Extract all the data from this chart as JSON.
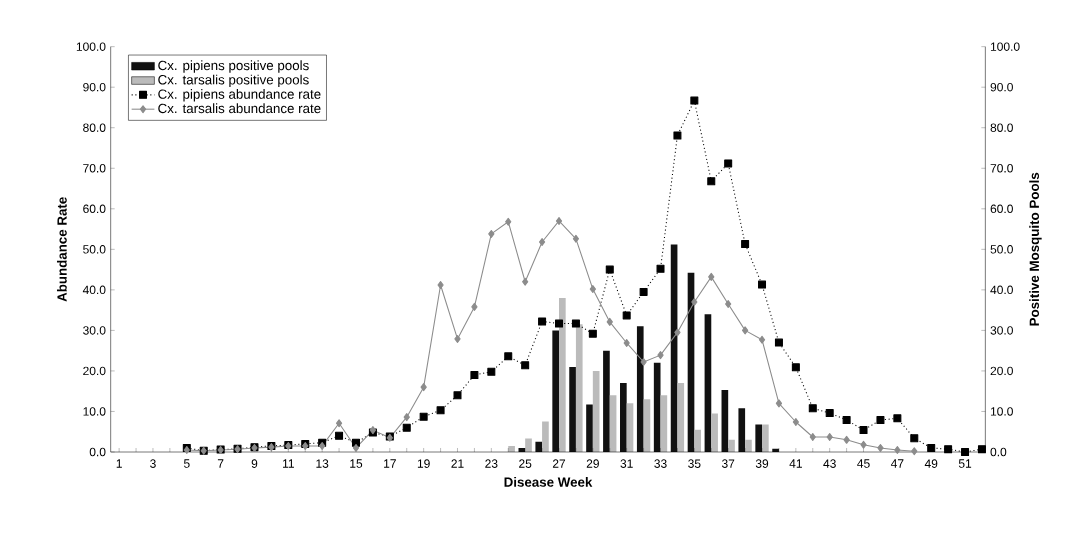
{
  "chart_data": {
    "type": "bar",
    "xlabel": "Disease Week",
    "ylabel": "Abundance Rate",
    "y2label": "Positive Mosquito Pools",
    "categories": [
      "1",
      null,
      "3",
      null,
      "5",
      null,
      "7",
      null,
      "9",
      null,
      "11",
      null,
      "13",
      null,
      "15",
      null,
      "17",
      null,
      "19",
      null,
      "21",
      null,
      "23",
      null,
      "25",
      null,
      "27",
      null,
      "29",
      null,
      "31",
      null,
      "33",
      null,
      "35",
      null,
      "37",
      null,
      "39",
      null,
      "41",
      null,
      "43",
      null,
      "45",
      null,
      "47",
      null,
      "49",
      null,
      "51",
      null
    ],
    "series": [
      {
        "name": "Cx. pipiens positive pools",
        "axis": "y2",
        "color": "#111111",
        "values": [
          null,
          null,
          null,
          null,
          null,
          null,
          null,
          null,
          null,
          null,
          null,
          null,
          null,
          null,
          null,
          null,
          null,
          null,
          null,
          null,
          null,
          null,
          null,
          null,
          1.0,
          2.5,
          30.0,
          21.0,
          11.7,
          25.0,
          17.0,
          31.0,
          22.0,
          51.2,
          44.2,
          34.0,
          15.3,
          10.8,
          6.8,
          0.8,
          null,
          null,
          null,
          null,
          null,
          null,
          null,
          null,
          null,
          null,
          null,
          null
        ]
      },
      {
        "name": "Cx. tarsalis positive pools",
        "axis": "y2",
        "color": "#bbbbbb",
        "values": [
          null,
          null,
          null,
          null,
          null,
          null,
          null,
          null,
          null,
          null,
          null,
          null,
          null,
          null,
          null,
          null,
          null,
          null,
          null,
          null,
          null,
          null,
          null,
          1.5,
          3.3,
          7.5,
          38.0,
          31.5,
          20.0,
          14.0,
          12.0,
          13.0,
          14.0,
          17.0,
          5.5,
          9.5,
          3.0,
          3.0,
          6.8,
          null,
          null,
          null,
          null,
          null,
          null,
          null,
          null,
          null,
          null,
          null,
          null,
          null
        ]
      },
      {
        "name": "Cx. pipiens abundance rate",
        "type": "line",
        "color": "#000000",
        "marker": "square",
        "line_style": "dotted",
        "values": [
          null,
          null,
          null,
          null,
          1.0,
          0.3,
          0.6,
          0.8,
          1.2,
          1.5,
          1.7,
          2.0,
          2.3,
          4.0,
          2.3,
          4.8,
          3.8,
          6.0,
          8.7,
          10.3,
          14.0,
          19.0,
          19.8,
          23.6,
          21.4,
          32.2,
          31.7,
          31.7,
          29.2,
          45.0,
          33.7,
          39.5,
          45.2,
          78.1,
          86.7,
          66.8,
          71.2,
          51.3,
          41.3,
          27.0,
          20.9,
          10.8,
          9.6,
          7.9,
          5.4,
          7.9,
          8.3,
          3.4,
          1.0,
          0.7,
          0.0,
          0.7
        ]
      },
      {
        "name": "Cx. tarsalis abundance rate",
        "type": "line",
        "color": "#8c8c8c",
        "marker": "diamond",
        "line_style": "solid",
        "values": [
          null,
          null,
          null,
          null,
          0.5,
          0.3,
          0.5,
          0.7,
          1.0,
          1.2,
          1.5,
          1.5,
          1.5,
          7.1,
          1.0,
          5.4,
          3.5,
          8.6,
          16.0,
          41.2,
          27.9,
          35.8,
          53.8,
          56.8,
          42.0,
          51.8,
          57.0,
          52.6,
          40.2,
          32.1,
          26.9,
          22.2,
          23.9,
          29.5,
          37.0,
          43.2,
          36.5,
          30.0,
          27.7,
          12.0,
          7.4,
          3.7,
          3.7,
          3.0,
          1.8,
          1.0,
          0.5,
          0.2,
          null,
          null,
          null,
          null
        ]
      }
    ],
    "ylim": [
      0,
      100
    ],
    "yticks": [
      {
        "value": 0,
        "label": "0.0"
      },
      {
        "value": 10,
        "label": "10.0"
      },
      {
        "value": 20,
        "label": "20.0"
      },
      {
        "value": 30,
        "label": "30.0"
      },
      {
        "value": 40,
        "label": "40.0"
      },
      {
        "value": 50,
        "label": "50.0"
      },
      {
        "value": 60,
        "label": "60.0"
      },
      {
        "value": 70,
        "label": "70.0"
      },
      {
        "value": 80,
        "label": "80.0"
      },
      {
        "value": 90,
        "label": "90.0"
      },
      {
        "value": 100,
        "label": "100.0"
      }
    ],
    "y2lim": [
      0,
      100
    ],
    "y2ticks": [
      {
        "value": 0,
        "label": "0.0"
      },
      {
        "value": 10,
        "label": "10.0"
      },
      {
        "value": 20,
        "label": "20.0"
      },
      {
        "value": 30,
        "label": "30.0"
      },
      {
        "value": 40,
        "label": "40.0"
      },
      {
        "value": 50,
        "label": "50.0"
      },
      {
        "value": 60,
        "label": "60.0"
      },
      {
        "value": 70,
        "label": "70.0"
      },
      {
        "value": 80,
        "label": "80.0"
      },
      {
        "value": 90,
        "label": "90.0"
      },
      {
        "value": 100,
        "label": "100.0"
      }
    ],
    "legend": "top left",
    "grid": false
  }
}
